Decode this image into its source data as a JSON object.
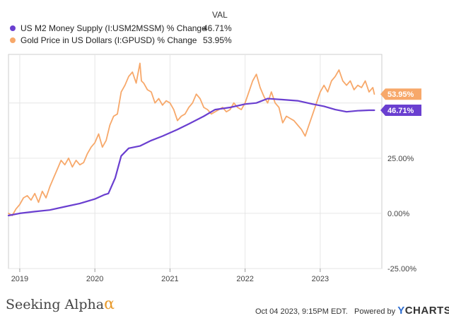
{
  "legend": {
    "header": "VAL",
    "items": [
      {
        "label": "US M2 Money Supply (I:USM2MSSM) % Change",
        "value": "46.71%",
        "color": "#6a3fd0"
      },
      {
        "label": "Gold Price in US Dollars (I:GPUSD) % Change",
        "value": "53.95%",
        "color": "#f7a86a"
      }
    ]
  },
  "footer": {
    "brand_text": "Seeking Alpha",
    "brand_symbol": "α",
    "timestamp": "Oct 04 2023, 9:15PM EDT.",
    "powered_by": "Powered by",
    "ycharts_y": "Y",
    "ycharts_rest": "CHARTS"
  },
  "chart_data": {
    "type": "line",
    "xlim": [
      2018.85,
      2023.82
    ],
    "ylim": [
      -0.25,
      0.72
    ],
    "y_ticks": [
      {
        "value": 0.5,
        "label": ""
      },
      {
        "value": 0.25,
        "label": "25.00%"
      },
      {
        "value": 0.0,
        "label": "0.00%"
      },
      {
        "value": -0.25,
        "label": "-25.00%"
      }
    ],
    "x_ticks": [
      {
        "value": 2019.0,
        "label": "2019"
      },
      {
        "value": 2020.0,
        "label": "2020"
      },
      {
        "value": 2021.0,
        "label": "2021"
      },
      {
        "value": 2022.0,
        "label": "2022"
      },
      {
        "value": 2023.0,
        "label": "2023"
      }
    ],
    "grid": true,
    "series": [
      {
        "name": "US M2 Money Supply (I:USM2MSSM) % Change",
        "color": "#6a3fd0",
        "end_label": "46.71%",
        "x": [
          2018.85,
          2019.0,
          2019.2,
          2019.4,
          2019.6,
          2019.8,
          2020.0,
          2020.13,
          2020.18,
          2020.27,
          2020.35,
          2020.45,
          2020.6,
          2020.75,
          2020.9,
          2021.1,
          2021.25,
          2021.45,
          2021.6,
          2021.8,
          2022.0,
          2022.15,
          2022.3,
          2022.5,
          2022.7,
          2022.9,
          2023.05,
          2023.2,
          2023.35,
          2023.5,
          2023.65,
          2023.72
        ],
        "y": [
          -0.01,
          0.0,
          0.008,
          0.015,
          0.03,
          0.045,
          0.065,
          0.085,
          0.09,
          0.16,
          0.26,
          0.295,
          0.305,
          0.33,
          0.35,
          0.38,
          0.405,
          0.44,
          0.47,
          0.48,
          0.495,
          0.5,
          0.52,
          0.515,
          0.51,
          0.495,
          0.485,
          0.47,
          0.46,
          0.465,
          0.467,
          0.467
        ]
      },
      {
        "name": "Gold Price in US Dollars (I:GPUSD) % Change",
        "color": "#f7a86a",
        "end_label": "53.95%",
        "x": [
          2018.85,
          2018.9,
          2018.95,
          2019.0,
          2019.05,
          2019.1,
          2019.15,
          2019.2,
          2019.25,
          2019.3,
          2019.35,
          2019.4,
          2019.45,
          2019.5,
          2019.55,
          2019.6,
          2019.65,
          2019.7,
          2019.75,
          2019.8,
          2019.85,
          2019.9,
          2019.95,
          2020.0,
          2020.05,
          2020.1,
          2020.15,
          2020.2,
          2020.25,
          2020.3,
          2020.35,
          2020.4,
          2020.45,
          2020.5,
          2020.55,
          2020.6,
          2020.62,
          2020.65,
          2020.7,
          2020.75,
          2020.8,
          2020.85,
          2020.9,
          2020.95,
          2021.0,
          2021.05,
          2021.1,
          2021.15,
          2021.2,
          2021.25,
          2021.3,
          2021.35,
          2021.4,
          2021.45,
          2021.5,
          2021.55,
          2021.6,
          2021.65,
          2021.7,
          2021.75,
          2021.8,
          2021.85,
          2021.9,
          2021.95,
          2022.0,
          2022.05,
          2022.1,
          2022.15,
          2022.2,
          2022.25,
          2022.3,
          2022.35,
          2022.4,
          2022.45,
          2022.5,
          2022.55,
          2022.6,
          2022.65,
          2022.7,
          2022.75,
          2022.8,
          2022.85,
          2022.9,
          2022.95,
          2023.0,
          2023.05,
          2023.1,
          2023.15,
          2023.2,
          2023.25,
          2023.3,
          2023.35,
          2023.4,
          2023.45,
          2023.5,
          2023.55,
          2023.6,
          2023.65,
          2023.7,
          2023.72
        ],
        "y": [
          0.0,
          -0.01,
          0.02,
          0.04,
          0.07,
          0.08,
          0.06,
          0.09,
          0.05,
          0.1,
          0.07,
          0.12,
          0.16,
          0.2,
          0.24,
          0.22,
          0.25,
          0.21,
          0.24,
          0.22,
          0.23,
          0.27,
          0.3,
          0.32,
          0.36,
          0.3,
          0.33,
          0.4,
          0.44,
          0.45,
          0.55,
          0.58,
          0.62,
          0.64,
          0.59,
          0.68,
          0.6,
          0.59,
          0.56,
          0.55,
          0.5,
          0.52,
          0.49,
          0.51,
          0.5,
          0.47,
          0.42,
          0.44,
          0.45,
          0.48,
          0.5,
          0.54,
          0.52,
          0.48,
          0.47,
          0.45,
          0.46,
          0.47,
          0.48,
          0.46,
          0.47,
          0.5,
          0.48,
          0.47,
          0.5,
          0.55,
          0.6,
          0.63,
          0.57,
          0.53,
          0.5,
          0.55,
          0.5,
          0.48,
          0.41,
          0.44,
          0.43,
          0.42,
          0.4,
          0.38,
          0.35,
          0.4,
          0.45,
          0.5,
          0.55,
          0.58,
          0.55,
          0.6,
          0.62,
          0.65,
          0.6,
          0.58,
          0.6,
          0.56,
          0.58,
          0.57,
          0.6,
          0.55,
          0.57,
          0.54
        ]
      }
    ]
  }
}
